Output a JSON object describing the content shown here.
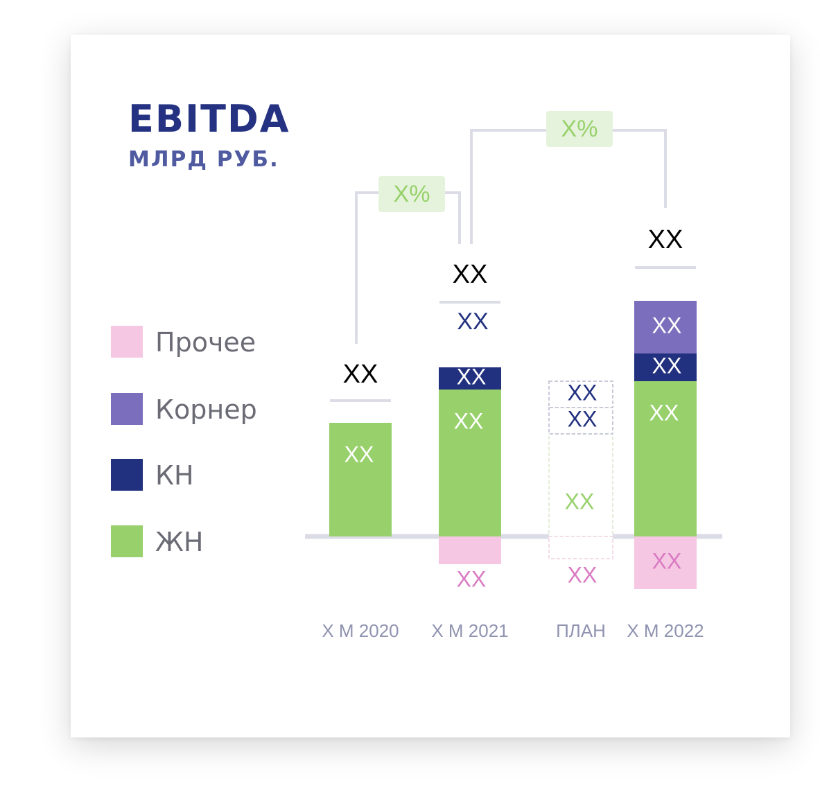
{
  "title": "EBITDA",
  "subtitle": "МЛРД РУБ.",
  "legend": [
    {
      "label": "Прочее",
      "color": "#f6c7e3"
    },
    {
      "label": "Корнер",
      "color": "#7b6fbd"
    },
    {
      "label": "КН",
      "color": "#22317f"
    },
    {
      "label": "ЖН",
      "color": "#98d16c"
    }
  ],
  "chart_data": {
    "type": "bar",
    "stacked": true,
    "categories": [
      "Х М 2020",
      "Х М 2021",
      "ПЛАН",
      "Х М 2022"
    ],
    "series": [
      {
        "name": "ЖН",
        "color": "#98d16c",
        "values": [
          4.1,
          5.3,
          3.7,
          5.6
        ],
        "labels": [
          "ХХ",
          "ХХ",
          "ХХ",
          "ХХ"
        ]
      },
      {
        "name": "КН",
        "color": "#22317f",
        "values": [
          0,
          0.8,
          0.95,
          1.0
        ],
        "labels": [
          "",
          "ХХ",
          "ХХ",
          "ХХ"
        ]
      },
      {
        "name": "Корнер",
        "color": "#7b6fbd",
        "values": [
          0,
          0,
          0.95,
          1.9
        ],
        "labels": [
          "",
          "",
          "ХХ",
          "ХХ"
        ]
      },
      {
        "name": "Прочее",
        "color": "#f6c7e3",
        "values": [
          0,
          -1.0,
          -0.8,
          -1.9
        ],
        "labels": [
          "",
          "ХХ",
          "ХХ",
          "ХХ"
        ]
      }
    ],
    "totals": [
      "ХХ",
      "ХХ",
      "",
      "ХХ"
    ],
    "plan_category": "ПЛАН",
    "growth": [
      {
        "from": "Х М 2020",
        "to": "Х М 2021",
        "label": "Х%"
      },
      {
        "from": "Х М 2021",
        "to": "Х М 2022",
        "label": "Х%"
      }
    ],
    "ylim": [
      -2.2,
      9.5
    ],
    "grid": false,
    "legend_position": "left"
  }
}
